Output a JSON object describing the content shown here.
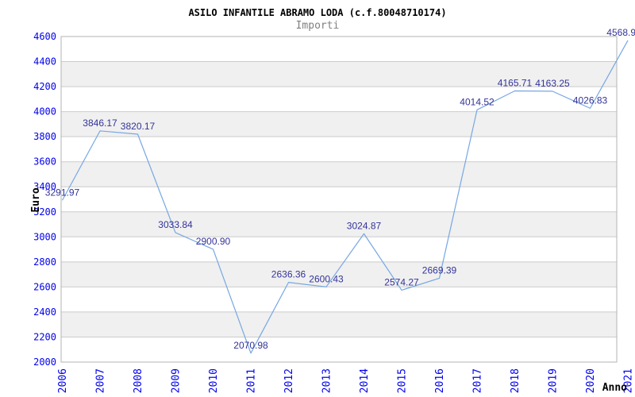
{
  "header": {
    "title": "ASILO INFANTILE ABRAMO LODA (c.f.80048710174)",
    "subtitle": "Importi"
  },
  "chart_data": {
    "type": "line",
    "title": "ASILO INFANTILE ABRAMO LODA (c.f.80048710174)",
    "subtitle": "Importi",
    "xlabel": "Anno",
    "ylabel": "Euro",
    "categories": [
      "2006",
      "2007",
      "2008",
      "2009",
      "2010",
      "2011",
      "2012",
      "2013",
      "2014",
      "2015",
      "2016",
      "2017",
      "2018",
      "2019",
      "2020",
      "2021"
    ],
    "values": [
      3291.97,
      3846.17,
      3820.17,
      3033.84,
      2900.9,
      2070.98,
      2636.36,
      2600.43,
      3024.87,
      2574.27,
      2669.39,
      4014.52,
      4165.71,
      4163.25,
      4026.83,
      4568.9
    ],
    "point_labels": [
      "3291.97",
      "3846.17",
      "3820.17",
      "3033.84",
      "2900.90",
      "2070.98",
      "2636.36",
      "2600.43",
      "3024.87",
      "2574.27",
      "2669.39",
      "4014.52",
      "4165.71",
      "4163.25",
      "4026.83",
      "4568.9"
    ],
    "ylim": [
      2000,
      4600
    ],
    "ytick_step": 200,
    "ytick_labels": [
      "2000",
      "2200",
      "2400",
      "2600",
      "2800",
      "3000",
      "3200",
      "3400",
      "3600",
      "3800",
      "4000",
      "4200",
      "4400",
      "4600"
    ],
    "grid": true,
    "legend_position": "none",
    "band_fill": "alternating-horizontal"
  },
  "colors": {
    "line": "#76a7e3",
    "tick_label": "#0000ee",
    "point_label": "#333399",
    "band": "#f0f0f0",
    "grid": "#cccccc",
    "border": "#b3b3b3",
    "title": "#000000",
    "subtitle": "#808080",
    "axis_title": "#000000",
    "background": "#ffffff"
  }
}
